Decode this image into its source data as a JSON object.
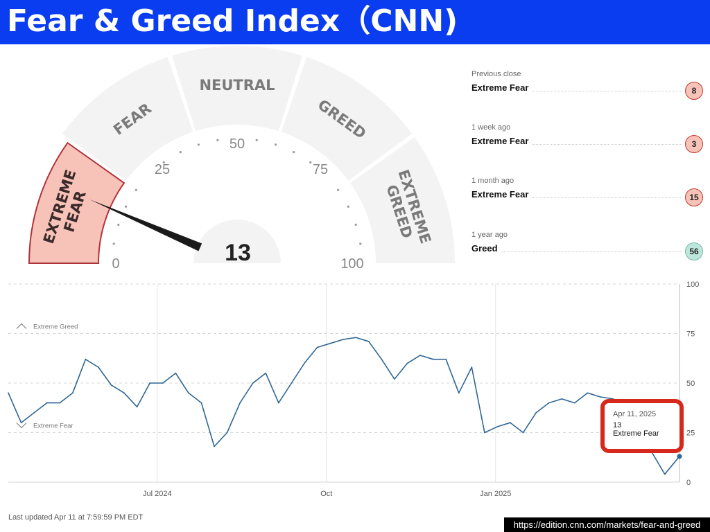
{
  "header": {
    "title": "Fear & Greed Index（CNN)"
  },
  "gauge": {
    "value": 13,
    "zones": [
      "EXTREME FEAR",
      "FEAR",
      "NEUTRAL",
      "GREED",
      "EXTREME GREED"
    ],
    "active_zone": "EXTREME FEAR",
    "tick_labels": [
      "0",
      "25",
      "50",
      "75",
      "100"
    ],
    "colors": {
      "active": "#f7c2b8",
      "active_border": "#b0333c",
      "inactive": "#f3f3f3",
      "needle": "#1a1a1a"
    }
  },
  "history": [
    {
      "label": "Previous close",
      "rating": "Extreme Fear",
      "value": 8
    },
    {
      "label": "1 week ago",
      "rating": "Extreme Fear",
      "value": 3
    },
    {
      "label": "1 month ago",
      "rating": "Extreme Fear",
      "value": 15
    },
    {
      "label": "1 year ago",
      "rating": "Greed",
      "value": 56
    }
  ],
  "chart_data": {
    "type": "line",
    "title": "",
    "xlabel": "",
    "ylabel": "",
    "ylim": [
      0,
      100
    ],
    "yticks": [
      0,
      25,
      50,
      75,
      100
    ],
    "xticks": [
      "Jul 2024",
      "Oct",
      "Jan 2025"
    ],
    "zone_labels": [
      "Extreme Greed",
      "Extreme Fear"
    ],
    "line_color": "#2f6694",
    "grid": true,
    "x": [
      "2024-04-11",
      "2024-04-18",
      "2024-04-25",
      "2024-05-02",
      "2024-05-09",
      "2024-05-16",
      "2024-05-23",
      "2024-05-30",
      "2024-06-06",
      "2024-06-13",
      "2024-06-20",
      "2024-06-27",
      "2024-07-04",
      "2024-07-11",
      "2024-07-18",
      "2024-07-25",
      "2024-08-01",
      "2024-08-08",
      "2024-08-15",
      "2024-08-22",
      "2024-08-29",
      "2024-09-05",
      "2024-09-12",
      "2024-09-19",
      "2024-09-26",
      "2024-10-03",
      "2024-10-10",
      "2024-10-17",
      "2024-10-24",
      "2024-10-31",
      "2024-11-07",
      "2024-11-14",
      "2024-11-21",
      "2024-11-28",
      "2024-12-05",
      "2024-12-12",
      "2024-12-19",
      "2024-12-26",
      "2025-01-02",
      "2025-01-09",
      "2025-01-16",
      "2025-01-23",
      "2025-01-30",
      "2025-02-06",
      "2025-02-13",
      "2025-02-20",
      "2025-02-27",
      "2025-03-06",
      "2025-03-13",
      "2025-03-20",
      "2025-03-27",
      "2025-04-03",
      "2025-04-11"
    ],
    "values": [
      45,
      30,
      35,
      40,
      40,
      45,
      62,
      58,
      49,
      45,
      38,
      50,
      50,
      55,
      45,
      40,
      18,
      25,
      40,
      50,
      55,
      40,
      50,
      60,
      68,
      70,
      72,
      73,
      71,
      62,
      52,
      60,
      64,
      62,
      62,
      45,
      58,
      25,
      28,
      30,
      25,
      35,
      40,
      42,
      40,
      45,
      43,
      42,
      30,
      16,
      15,
      4,
      13
    ],
    "annotation": {
      "date": "Apr 11, 2025",
      "value": "13",
      "label": "Extreme Fear"
    }
  },
  "footer": {
    "updated": "Last updated Apr 11 at 7:59:59 PM EDT",
    "source": "https://edition.cnn.com/markets/fear-and-greed"
  }
}
